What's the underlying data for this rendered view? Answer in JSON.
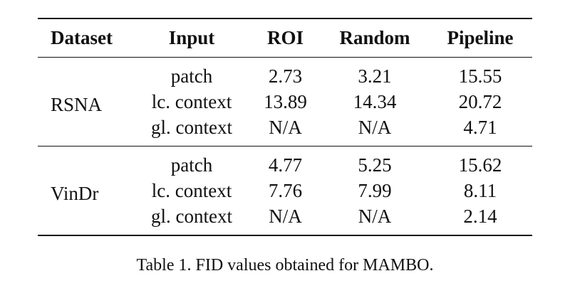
{
  "table": {
    "headers": [
      "Dataset",
      "Input",
      "ROI",
      "Random",
      "Pipeline"
    ],
    "groups": [
      {
        "dataset": "RSNA",
        "rows": [
          {
            "input": "patch",
            "roi": "2.73",
            "random": "3.21",
            "pipeline": "15.55"
          },
          {
            "input": "lc. context",
            "roi": "13.89",
            "random": "14.34",
            "pipeline": "20.72"
          },
          {
            "input": "gl. context",
            "roi": "N/A",
            "random": "N/A",
            "pipeline": "4.71"
          }
        ]
      },
      {
        "dataset": "VinDr",
        "rows": [
          {
            "input": "patch",
            "roi": "4.77",
            "random": "5.25",
            "pipeline": "15.62"
          },
          {
            "input": "lc. context",
            "roi": "7.76",
            "random": "7.99",
            "pipeline": "8.11"
          },
          {
            "input": "gl. context",
            "roi": "N/A",
            "random": "N/A",
            "pipeline": "2.14"
          }
        ]
      }
    ]
  },
  "caption": "Table 1. FID values obtained for MAMBO."
}
